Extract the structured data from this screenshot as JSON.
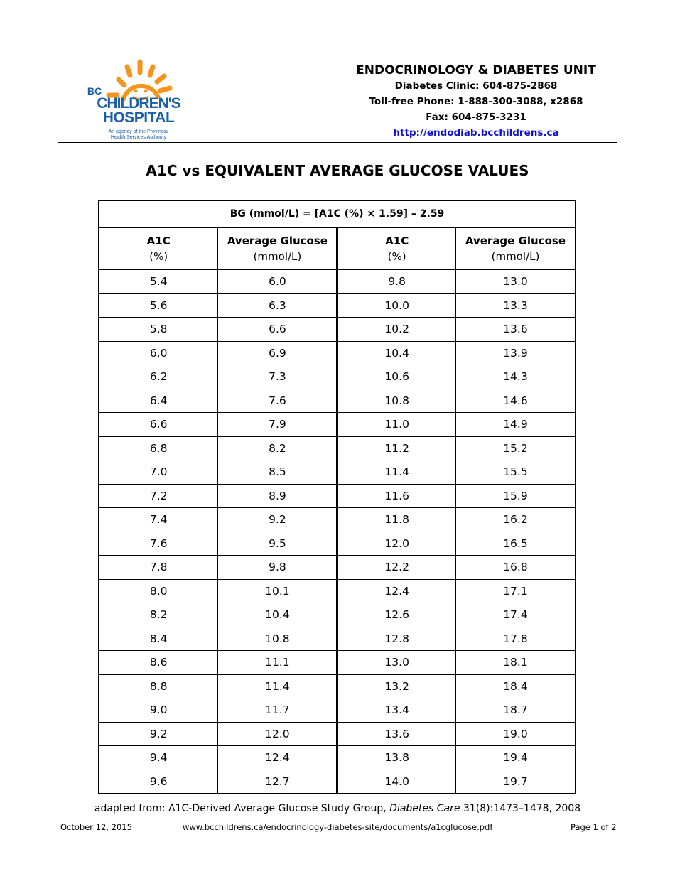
{
  "logo": {
    "line1": "BC",
    "line2": "CHILDREN'S",
    "line3": "HOSPITAL",
    "tagline1": "An agency of the Provincial",
    "tagline2": "Health Services Authority",
    "colors": {
      "sun": "#f7941d",
      "text": "#1a5fa8"
    }
  },
  "header": {
    "unit": "ENDOCRINOLOGY & DIABETES UNIT",
    "clinic": "Diabetes Clinic: 604-875-2868",
    "tollfree": "Toll-free Phone: 1-888-300-3088, x2868",
    "fax": "Fax: 604-875-3231",
    "url": "http://endodiab.bcchildrens.ca"
  },
  "title": "A1C vs EQUIVALENT AVERAGE GLUCOSE VALUES",
  "table": {
    "formula": "BG (mmol/L) = [A1C (%) × 1.59] – 2.59",
    "headers": [
      {
        "name": "A1C",
        "unit": "(%)"
      },
      {
        "name": "Average Glucose",
        "unit": "(mmol/L)"
      },
      {
        "name": "A1C",
        "unit": "(%)"
      },
      {
        "name": "Average Glucose",
        "unit": "(mmol/L)"
      }
    ],
    "rows": [
      [
        "5.4",
        "6.0",
        "9.8",
        "13.0"
      ],
      [
        "5.6",
        "6.3",
        "10.0",
        "13.3"
      ],
      [
        "5.8",
        "6.6",
        "10.2",
        "13.6"
      ],
      [
        "6.0",
        "6.9",
        "10.4",
        "13.9"
      ],
      [
        "6.2",
        "7.3",
        "10.6",
        "14.3"
      ],
      [
        "6.4",
        "7.6",
        "10.8",
        "14.6"
      ],
      [
        "6.6",
        "7.9",
        "11.0",
        "14.9"
      ],
      [
        "6.8",
        "8.2",
        "11.2",
        "15.2"
      ],
      [
        "7.0",
        "8.5",
        "11.4",
        "15.5"
      ],
      [
        "7.2",
        "8.9",
        "11.6",
        "15.9"
      ],
      [
        "7.4",
        "9.2",
        "11.8",
        "16.2"
      ],
      [
        "7.6",
        "9.5",
        "12.0",
        "16.5"
      ],
      [
        "7.8",
        "9.8",
        "12.2",
        "16.8"
      ],
      [
        "8.0",
        "10.1",
        "12.4",
        "17.1"
      ],
      [
        "8.2",
        "10.4",
        "12.6",
        "17.4"
      ],
      [
        "8.4",
        "10.8",
        "12.8",
        "17.8"
      ],
      [
        "8.6",
        "11.1",
        "13.0",
        "18.1"
      ],
      [
        "8.8",
        "11.4",
        "13.2",
        "18.4"
      ],
      [
        "9.0",
        "11.7",
        "13.4",
        "18.7"
      ],
      [
        "9.2",
        "12.0",
        "13.6",
        "19.0"
      ],
      [
        "9.4",
        "12.4",
        "13.8",
        "19.4"
      ],
      [
        "9.6",
        "12.7",
        "14.0",
        "19.7"
      ]
    ]
  },
  "citation": {
    "prefix": "adapted from: A1C-Derived Average Glucose Study Group, ",
    "journal": "Diabetes Care",
    "suffix": " 31(8):1473–1478, 2008"
  },
  "footer": {
    "date": "October 12, 2015",
    "url": "www.bcchildrens.ca/endocrinology-diabetes-site/documents/a1cglucose.pdf",
    "page": "Page 1 of 2"
  }
}
